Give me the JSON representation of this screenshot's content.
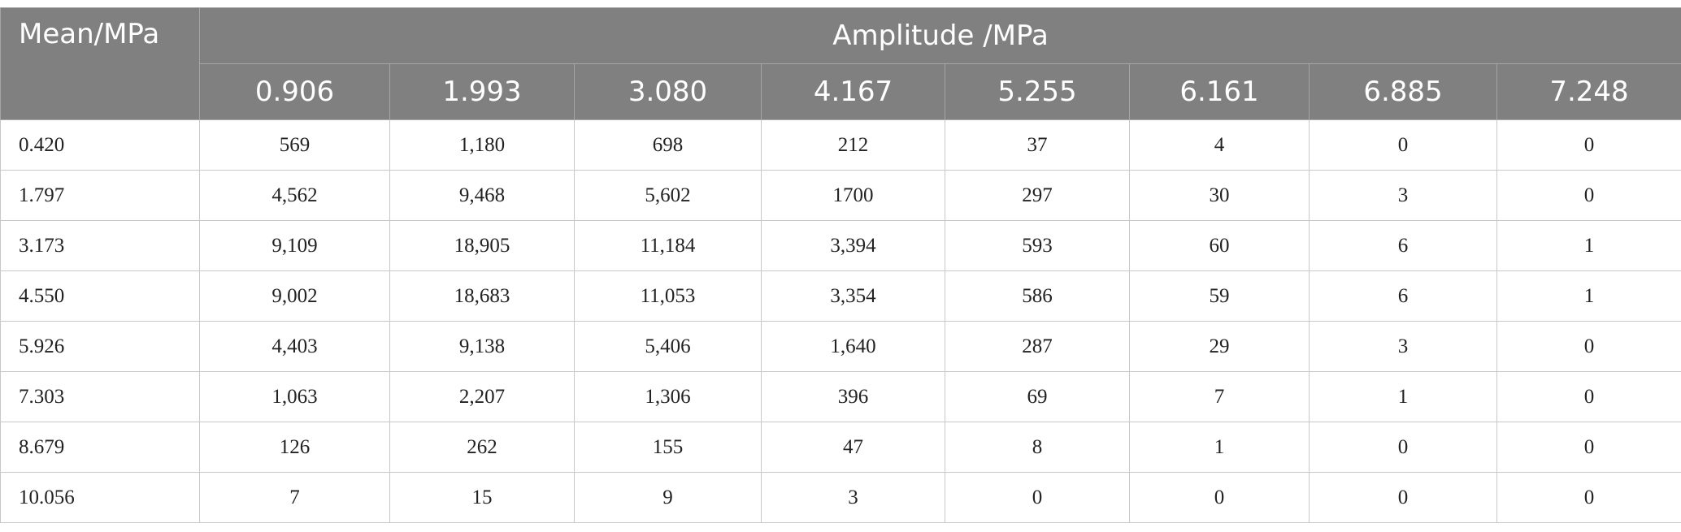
{
  "table": {
    "corner": "Mean/MPa",
    "group_header": "Amplitude /MPa",
    "columns": [
      "0.906",
      "1.993",
      "3.080",
      "4.167",
      "5.255",
      "6.161",
      "6.885",
      "7.248"
    ],
    "rows": [
      [
        "0.420",
        "569",
        "1,180",
        "698",
        "212",
        "37",
        "4",
        "0",
        "0"
      ],
      [
        "1.797",
        "4,562",
        "9,468",
        "5,602",
        "1700",
        "297",
        "30",
        "3",
        "0"
      ],
      [
        "3.173",
        "9,109",
        "18,905",
        "11,184",
        "3,394",
        "593",
        "60",
        "6",
        "1"
      ],
      [
        "4.550",
        "9,002",
        "18,683",
        "11,053",
        "3,354",
        "586",
        "59",
        "6",
        "1"
      ],
      [
        "5.926",
        "4,403",
        "9,138",
        "5,406",
        "1,640",
        "287",
        "29",
        "3",
        "0"
      ],
      [
        "7.303",
        "1,063",
        "2,207",
        "1,306",
        "396",
        "69",
        "7",
        "1",
        "0"
      ],
      [
        "8.679",
        "126",
        "262",
        "155",
        "47",
        "8",
        "1",
        "0",
        "0"
      ],
      [
        "10.056",
        "7",
        "15",
        "9",
        "3",
        "0",
        "0",
        "0",
        "0"
      ]
    ]
  }
}
